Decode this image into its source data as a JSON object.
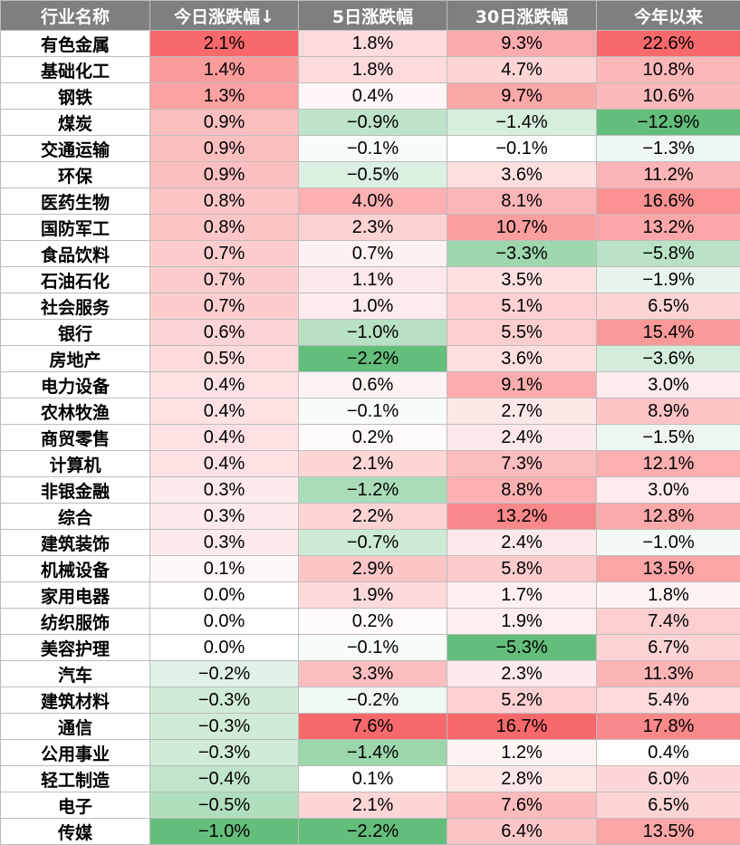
{
  "chart_data": {
    "type": "table",
    "columns": [
      "行业名称",
      "今日涨跌幅↓",
      "5日涨跌幅",
      "30日涨跌幅",
      "今年以来"
    ],
    "colors": {
      "header_bg": "#7f7f7f",
      "header_text": "#ffffff",
      "positive_max": "#f8696b",
      "negative_max": "#63be7b",
      "neutral": "#ffffff"
    },
    "rows": [
      {
        "name": "有色金属",
        "values": [
          "2.1%",
          "1.8%",
          "9.3%",
          "22.6%"
        ]
      },
      {
        "name": "基础化工",
        "values": [
          "1.4%",
          "1.8%",
          "4.7%",
          "10.8%"
        ]
      },
      {
        "name": "钢铁",
        "values": [
          "1.3%",
          "0.4%",
          "9.7%",
          "10.6%"
        ]
      },
      {
        "name": "煤炭",
        "values": [
          "0.9%",
          "−0.9%",
          "−1.4%",
          "−12.9%"
        ]
      },
      {
        "name": "交通运输",
        "values": [
          "0.9%",
          "−0.1%",
          "−0.1%",
          "−1.3%"
        ]
      },
      {
        "name": "环保",
        "values": [
          "0.9%",
          "−0.5%",
          "3.6%",
          "11.2%"
        ]
      },
      {
        "name": "医药生物",
        "values": [
          "0.8%",
          "4.0%",
          "8.1%",
          "16.6%"
        ]
      },
      {
        "name": "国防军工",
        "values": [
          "0.8%",
          "2.3%",
          "10.7%",
          "13.2%"
        ]
      },
      {
        "name": "食品饮料",
        "values": [
          "0.7%",
          "0.7%",
          "−3.3%",
          "−5.8%"
        ]
      },
      {
        "name": "石油石化",
        "values": [
          "0.7%",
          "1.1%",
          "3.5%",
          "−1.9%"
        ]
      },
      {
        "name": "社会服务",
        "values": [
          "0.7%",
          "1.0%",
          "5.1%",
          "6.5%"
        ]
      },
      {
        "name": "银行",
        "values": [
          "0.6%",
          "−1.0%",
          "5.5%",
          "15.4%"
        ]
      },
      {
        "name": "房地产",
        "values": [
          "0.5%",
          "−2.2%",
          "3.6%",
          "−3.6%"
        ]
      },
      {
        "name": "电力设备",
        "values": [
          "0.4%",
          "0.6%",
          "9.1%",
          "3.0%"
        ]
      },
      {
        "name": "农林牧渔",
        "values": [
          "0.4%",
          "−0.1%",
          "2.7%",
          "8.9%"
        ]
      },
      {
        "name": "商贸零售",
        "values": [
          "0.4%",
          "0.2%",
          "2.4%",
          "−1.5%"
        ]
      },
      {
        "name": "计算机",
        "values": [
          "0.4%",
          "2.1%",
          "7.3%",
          "12.1%"
        ]
      },
      {
        "name": "非银金融",
        "values": [
          "0.3%",
          "−1.2%",
          "8.8%",
          "3.0%"
        ]
      },
      {
        "name": "综合",
        "values": [
          "0.3%",
          "2.2%",
          "13.2%",
          "12.8%"
        ]
      },
      {
        "name": "建筑装饰",
        "values": [
          "0.3%",
          "−0.7%",
          "2.4%",
          "−1.0%"
        ]
      },
      {
        "name": "机械设备",
        "values": [
          "0.1%",
          "2.9%",
          "5.8%",
          "13.5%"
        ]
      },
      {
        "name": "家用电器",
        "values": [
          "0.0%",
          "1.9%",
          "1.7%",
          "1.8%"
        ]
      },
      {
        "name": "纺织服饰",
        "values": [
          "0.0%",
          "0.2%",
          "1.9%",
          "7.4%"
        ]
      },
      {
        "name": "美容护理",
        "values": [
          "0.0%",
          "−0.1%",
          "−5.3%",
          "6.7%"
        ]
      },
      {
        "name": "汽车",
        "values": [
          "−0.2%",
          "3.3%",
          "2.3%",
          "11.3%"
        ]
      },
      {
        "name": "建筑材料",
        "values": [
          "−0.3%",
          "−0.2%",
          "5.2%",
          "5.4%"
        ]
      },
      {
        "name": "通信",
        "values": [
          "−0.3%",
          "7.6%",
          "16.7%",
          "17.8%"
        ]
      },
      {
        "name": "公用事业",
        "values": [
          "−0.3%",
          "−1.4%",
          "1.2%",
          "0.4%"
        ]
      },
      {
        "name": "轻工制造",
        "values": [
          "−0.4%",
          "0.1%",
          "2.8%",
          "6.0%"
        ]
      },
      {
        "name": "电子",
        "values": [
          "−0.5%",
          "2.1%",
          "7.6%",
          "6.5%"
        ]
      },
      {
        "name": "传媒",
        "values": [
          "−1.0%",
          "−2.2%",
          "6.4%",
          "13.5%"
        ]
      }
    ]
  }
}
